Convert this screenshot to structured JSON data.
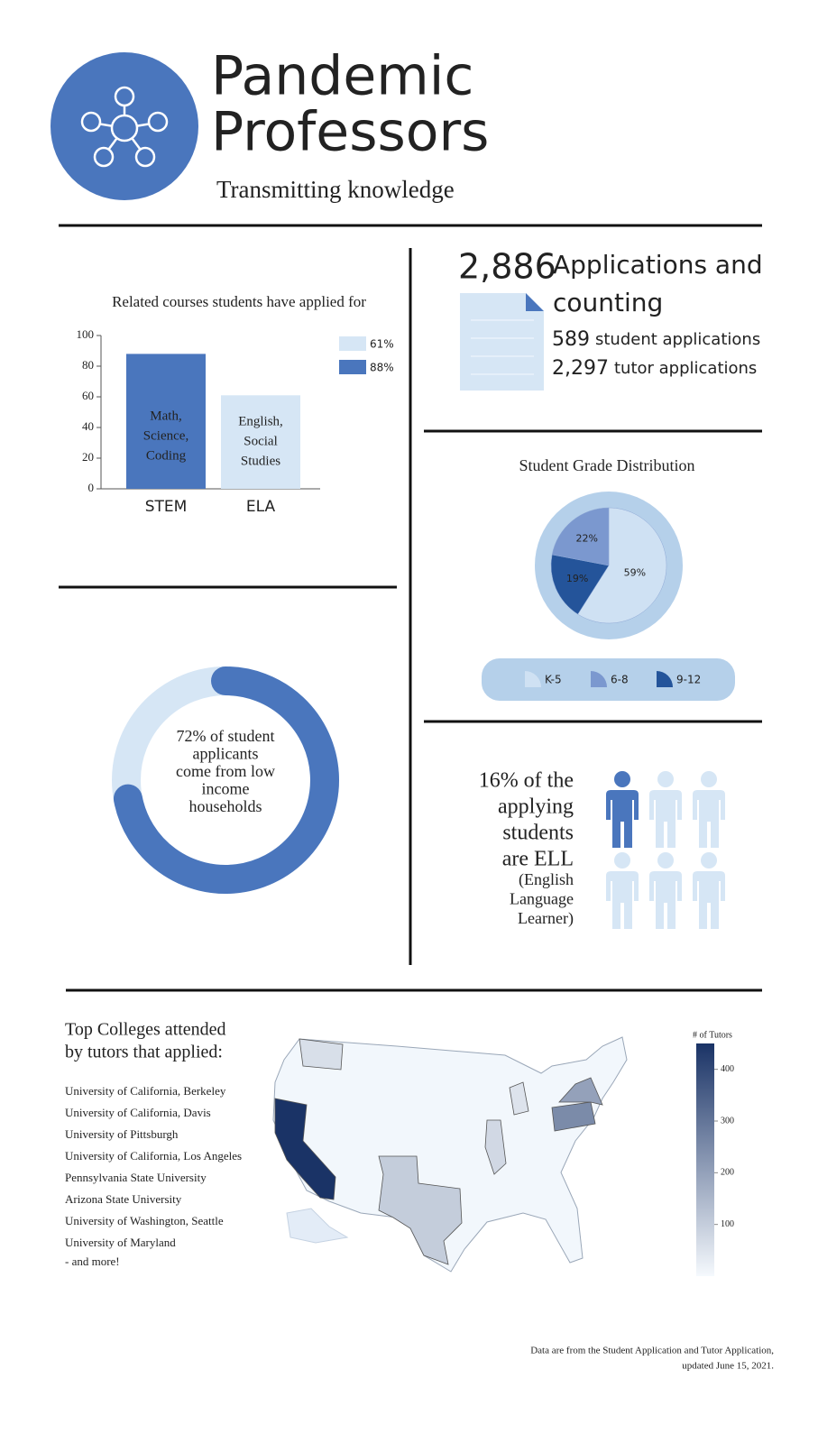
{
  "header": {
    "title": [
      "Pandemic",
      "Professors"
    ],
    "subtitle": "Transmitting knowledge"
  },
  "stats": {
    "total": "2,886",
    "total_label": [
      "Applications and",
      "counting"
    ],
    "items": [
      {
        "number": "589",
        "label": "student applications"
      },
      {
        "number": "2,297",
        "label": "tutor applications"
      }
    ]
  },
  "colleges": {
    "title": [
      "Top Colleges attended",
      "by tutors that applied:"
    ],
    "list": [
      "University of California, Berkeley",
      "University of California, Davis",
      "University of Pittsburgh",
      "University of California, Los Angeles",
      "Pennsylvania State University",
      "Arizona State University",
      "University of Washington, Seattle",
      "University of Maryland"
    ],
    "more": "- and more!"
  },
  "footer": [
    "Data are from the Student Application and Tutor Application,",
    "updated  June 15, 2021."
  ],
  "chart_data": [
    {
      "type": "bar",
      "title": "Related courses students have applied for",
      "categories": [
        "STEM",
        "ELA"
      ],
      "values": [
        88,
        61
      ],
      "value_labels": [
        "88%",
        "61%"
      ],
      "colors": [
        "#4a76bd",
        "#d6e6f5"
      ],
      "bar_text": [
        [
          "Math,",
          "Science,",
          "Coding"
        ],
        [
          "English,",
          "Social",
          "Studies"
        ]
      ],
      "ylim": [
        0,
        100
      ],
      "yticks": [
        0,
        20,
        40,
        60,
        80,
        100
      ]
    },
    {
      "type": "donut",
      "values": [
        72
      ],
      "colors": [
        "#4a76bd",
        "#d6e6f5"
      ],
      "text": [
        "72% of student",
        "applicants",
        "come from low",
        "income",
        "households"
      ]
    },
    {
      "type": "pie",
      "title": "Student Grade Distribution",
      "categories": [
        "K-5",
        "6-8",
        "9-12"
      ],
      "values": [
        59,
        22,
        19
      ],
      "value_labels": [
        "59%",
        "22%",
        "19%"
      ],
      "colors": [
        "#cfe1f3",
        "#7b98cf",
        "#24549a"
      ]
    },
    {
      "type": "pictogram",
      "text": [
        "16% of the",
        "applying",
        "students",
        "are ELL"
      ],
      "note": [
        "(English",
        "Language",
        "Learner)"
      ],
      "icons": 6,
      "filled_icons": 1,
      "colors": [
        "#4a76bd",
        "#d6e6f5"
      ]
    },
    {
      "type": "choropleth",
      "colorbar_title": "# of Tutors",
      "values": [
        450,
        250,
        200,
        100,
        75,
        60,
        50
      ],
      "colors": [
        "#f5f9fd",
        "#1a3366"
      ],
      "ylim": [
        0,
        450
      ],
      "yticks": [
        100,
        200,
        300,
        400
      ]
    }
  ]
}
